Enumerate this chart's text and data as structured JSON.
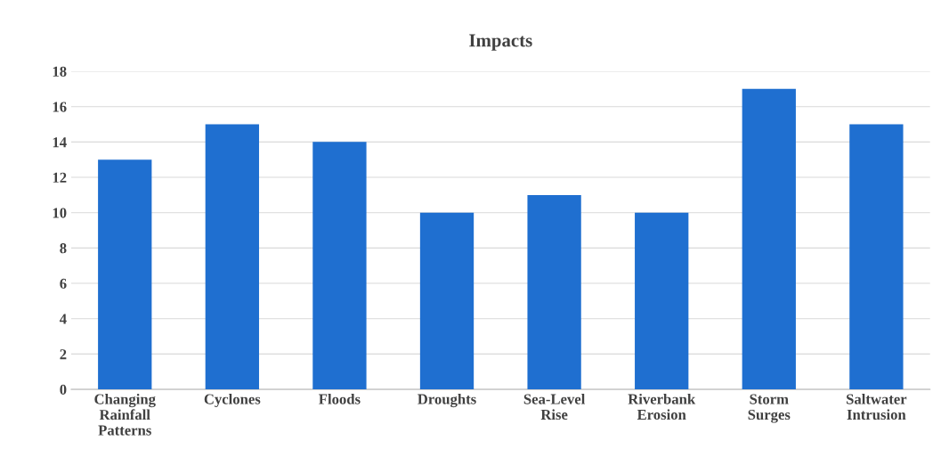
{
  "chart_data": {
    "type": "bar",
    "title": "Impacts",
    "categories": [
      "Changing\nRainfall\nPatterns",
      "Cyclones",
      "Floods",
      "Droughts",
      "Sea-Level\nRise",
      "Riverbank\nErosion",
      "Storm\nSurges",
      "Saltwater\nIntrusion"
    ],
    "values": [
      13,
      15,
      14,
      10,
      11,
      10,
      17,
      15
    ],
    "color": "#1f6fd0",
    "ylim": [
      0,
      18
    ],
    "yticks": [
      0,
      2,
      4,
      6,
      8,
      10,
      12,
      14,
      16,
      18
    ],
    "grid": "y"
  }
}
